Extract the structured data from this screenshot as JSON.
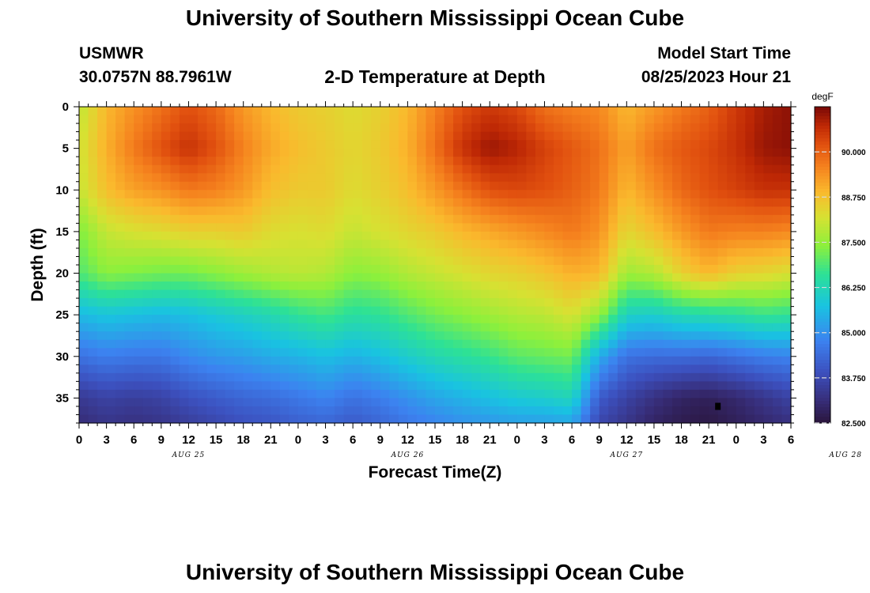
{
  "header": {
    "title": "University of Southern Mississippi Ocean Cube",
    "station_id": "USMWR",
    "coordinates": "30.0757N  88.7961W",
    "plot_title": "2-D Temperature at Depth",
    "model_start_label": "Model Start Time",
    "model_start_value": "08/25/2023 Hour 21"
  },
  "footer": {
    "title": "University of Southern Mississippi Ocean Cube"
  },
  "chart_data": {
    "type": "heatmap",
    "title": "2-D Temperature at Depth",
    "xlabel": "Forecast Time(Z)",
    "ylabel": "Depth (ft)",
    "x_tick_labels": [
      "0",
      "3",
      "6",
      "9",
      "12",
      "15",
      "18",
      "21",
      "0",
      "3",
      "6",
      "9",
      "12",
      "15",
      "18",
      "21",
      "0",
      "3",
      "6",
      "9",
      "12",
      "15",
      "18",
      "21",
      "0",
      "3",
      "6"
    ],
    "x_date_labels": [
      "AUG 25",
      "AUG 26",
      "AUG 27",
      "AUG 28"
    ],
    "xlim_hours": [
      0,
      78
    ],
    "y_ticks": [
      0,
      5,
      10,
      15,
      20,
      25,
      30,
      35
    ],
    "ylim": [
      0,
      38
    ],
    "y_reversed": true,
    "colorbar": {
      "unit": "degF",
      "labels": [
        "90.000",
        "88.750",
        "87.500",
        "86.250",
        "85.000",
        "83.750",
        "82.500"
      ],
      "min": 82.5,
      "max": 91.25
    },
    "depth_profile_ft": [
      0,
      5,
      10,
      15,
      20,
      25,
      30,
      35,
      38
    ],
    "time_hours": [
      0,
      3,
      6,
      9,
      12,
      15,
      18,
      21,
      24,
      27,
      30,
      33,
      36,
      39,
      42,
      45,
      48,
      51,
      54,
      57,
      60,
      63,
      66,
      69,
      72,
      75,
      78
    ],
    "temperature_degF": [
      [
        87.9,
        88.1,
        88.0,
        87.3,
        86.9,
        85.6,
        84.5,
        83.4,
        83.1
      ],
      [
        88.9,
        89.0,
        88.8,
        88.0,
        87.4,
        85.8,
        84.7,
        83.6,
        83.3
      ],
      [
        89.4,
        89.7,
        89.2,
        88.2,
        87.3,
        85.7,
        84.6,
        83.5,
        83.2
      ],
      [
        89.8,
        90.2,
        89.4,
        88.3,
        87.2,
        85.6,
        84.6,
        83.6,
        83.3
      ],
      [
        90.2,
        90.6,
        89.7,
        88.5,
        87.2,
        85.7,
        84.9,
        83.9,
        83.5
      ],
      [
        89.9,
        90.2,
        89.6,
        88.5,
        87.4,
        85.9,
        85.1,
        84.1,
        83.7
      ],
      [
        89.3,
        89.6,
        89.3,
        88.6,
        87.6,
        86.1,
        85.2,
        84.3,
        83.9
      ],
      [
        88.9,
        89.1,
        88.8,
        88.3,
        87.8,
        86.3,
        85.4,
        84.4,
        84.0
      ],
      [
        88.6,
        88.8,
        88.6,
        88.2,
        87.9,
        86.6,
        85.5,
        84.6,
        84.2
      ],
      [
        88.5,
        88.6,
        88.6,
        88.3,
        87.8,
        86.8,
        85.7,
        84.8,
        84.3
      ],
      [
        88.3,
        88.4,
        88.3,
        88.0,
        87.4,
        86.5,
        85.5,
        84.5,
        84.1
      ],
      [
        88.5,
        88.6,
        88.5,
        88.2,
        87.5,
        86.6,
        85.7,
        84.7,
        84.3
      ],
      [
        88.9,
        89.0,
        88.8,
        88.4,
        87.8,
        86.9,
        86.0,
        85.0,
        84.6
      ],
      [
        89.6,
        89.8,
        89.3,
        88.6,
        88.0,
        87.2,
        86.3,
        85.3,
        84.8
      ],
      [
        90.2,
        90.6,
        89.8,
        88.9,
        88.2,
        87.4,
        86.5,
        85.5,
        85.0
      ],
      [
        90.5,
        91.0,
        90.2,
        89.1,
        88.4,
        87.6,
        86.7,
        85.7,
        85.1
      ],
      [
        90.3,
        90.8,
        90.3,
        89.3,
        88.5,
        87.8,
        87.0,
        85.9,
        85.2
      ],
      [
        89.8,
        90.4,
        90.2,
        89.5,
        88.7,
        87.9,
        87.1,
        86.0,
        85.2
      ],
      [
        89.6,
        90.1,
        90.0,
        89.7,
        89.0,
        88.2,
        87.2,
        86.2,
        85.3
      ],
      [
        89.5,
        89.8,
        89.7,
        89.4,
        88.9,
        87.5,
        85.4,
        84.1,
        83.7
      ],
      [
        88.9,
        89.2,
        88.9,
        88.4,
        87.6,
        86.1,
        84.5,
        83.6,
        83.3
      ],
      [
        89.3,
        89.8,
        89.4,
        88.8,
        87.8,
        86.0,
        84.4,
        83.2,
        82.9
      ],
      [
        89.7,
        90.1,
        89.9,
        89.3,
        88.5,
        86.3,
        84.4,
        82.9,
        82.7
      ],
      [
        90.0,
        90.3,
        90.2,
        89.7,
        88.9,
        86.4,
        84.3,
        82.8,
        82.6
      ],
      [
        90.5,
        90.6,
        90.4,
        89.6,
        88.5,
        86.5,
        84.5,
        83.0,
        82.8
      ],
      [
        90.9,
        91.0,
        90.6,
        89.6,
        88.4,
        86.7,
        84.7,
        83.3,
        83.0
      ],
      [
        91.1,
        91.1,
        90.6,
        89.5,
        88.2,
        86.6,
        84.8,
        83.6,
        83.2
      ]
    ],
    "marker": {
      "hour": 70,
      "depth_ft": 36
    },
    "grid": false
  }
}
